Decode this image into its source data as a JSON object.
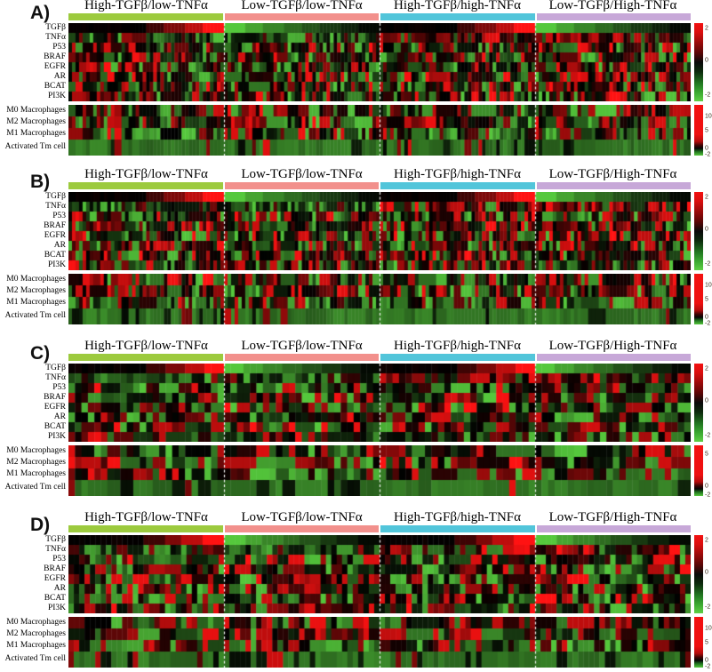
{
  "chart_data": {
    "type": "heatmap",
    "figure_note": "Four-panel (A-D) heatmap figure. In each panel: top block = gene expression z-scores per sample, bottom block = immune cell infiltration per sample. Samples are grouped into four TGFβ/TNFα categories separated by white dashed lines; individual cell values are not numerically labeled.",
    "groups": [
      {
        "name": "High-TGFβ/low-TNFα",
        "color": "#9cca3e",
        "tgfb": "high",
        "tnfa": "low"
      },
      {
        "name": "Low-TGFβ/low-TNFα",
        "color": "#f2908c",
        "tgfb": "low",
        "tnfa": "low"
      },
      {
        "name": "High-TGFβ/high-TNFα",
        "color": "#52c5da",
        "tgfb": "high",
        "tnfa": "high"
      },
      {
        "name": "Low-TGFβ/High-TNFα",
        "color": "#c7a8d8",
        "tgfb": "low",
        "tnfa": "high"
      }
    ],
    "gene_rows": [
      "TGFβ",
      "TNFα",
      "P53",
      "BRAF",
      "EGFR",
      "AR",
      "BCAT",
      "PI3K"
    ],
    "immune_rows": [
      "M0 Macrophages",
      "M2 Macrophages",
      "M1 Macrophages",
      "Activated Tm cell"
    ],
    "gene_scale": {
      "max": 2,
      "mid": 0,
      "min": -2,
      "high_color": "#f31111",
      "mid_color": "#000000",
      "low_color": "#55c83c"
    },
    "gene_ticks": [
      {
        "label": "2",
        "pos": 0.07
      },
      {
        "label": "0",
        "pos": 0.48
      },
      {
        "label": "-2",
        "pos": 0.92
      }
    ],
    "row_specs": {
      "genes": [
        "sorted",
        "tnfa",
        "random",
        "random",
        "random",
        "random",
        "random",
        "random"
      ],
      "immune": [
        "imm",
        "imm-red",
        "imm-green",
        "tm"
      ],
      "run_genes": 0.18,
      "run_immune": 0.3
    },
    "panels": [
      {
        "label": "A)",
        "columns_per_group": 44,
        "seed": 11,
        "immune_ticks": [
          {
            "label": "10",
            "pos": 0.22
          },
          {
            "label": "5",
            "pos": 0.5
          },
          {
            "label": "0",
            "pos": 0.86
          },
          {
            "label": "-2",
            "pos": 0.98
          }
        ]
      },
      {
        "label": "B)",
        "columns_per_group": 44,
        "seed": 23,
        "immune_ticks": [
          {
            "label": "10",
            "pos": 0.22
          },
          {
            "label": "5",
            "pos": 0.5
          },
          {
            "label": "0",
            "pos": 0.86
          },
          {
            "label": "-2",
            "pos": 0.98
          }
        ]
      },
      {
        "label": "C)",
        "columns_per_group": 24,
        "seed": 37,
        "immune_ticks": [
          {
            "label": "5",
            "pos": 0.18
          },
          {
            "label": "0",
            "pos": 0.8
          },
          {
            "label": "-2",
            "pos": 0.98
          }
        ]
      },
      {
        "label": "D)",
        "columns_per_group": 29,
        "seed": 51,
        "immune_ticks": [
          {
            "label": "10",
            "pos": 0.22
          },
          {
            "label": "5",
            "pos": 0.5
          },
          {
            "label": "0",
            "pos": 0.86
          },
          {
            "label": "-2",
            "pos": 0.98
          }
        ]
      }
    ],
    "patterns": {
      "tgfb_row": "sorted within each group: black to bright red in High-TGFβ groups; bright green to black in Low-TGFβ groups",
      "tnfa_row": "predominantly red stripes in high-TNFα groups; predominantly green/black stripes in low-TNFα groups",
      "other_gene_rows": "unsorted per-sample mix of red, green and black stripes",
      "immune_rows": "unsorted mix; M2 Macrophages slightly red-biased, M1 Macrophages slightly green-biased",
      "activated_tm_cell_row": "mostly uniform medium green with occasional black and rare red columns",
      "separators": "white dashed vertical lines between sample groups; white gap between gene and immune heatmap blocks"
    }
  }
}
